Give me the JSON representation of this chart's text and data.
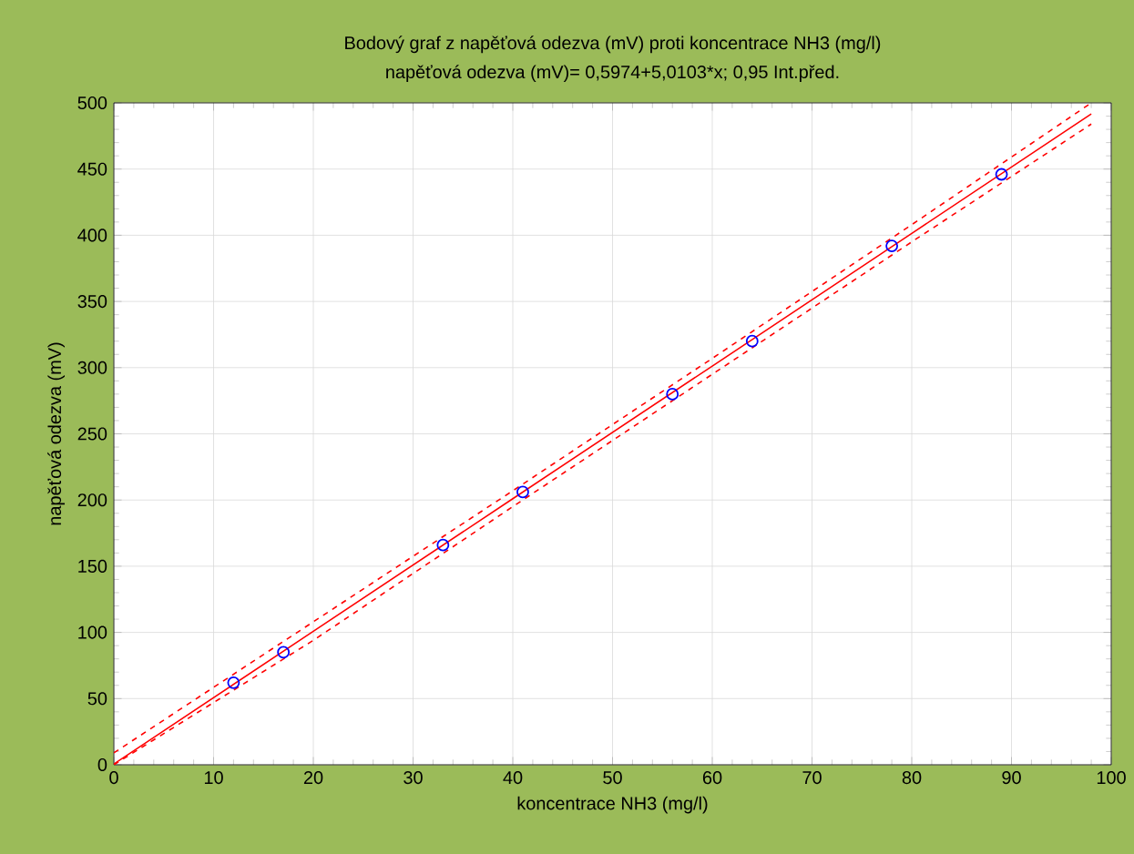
{
  "chart_data": {
    "type": "scatter",
    "title": "Bodový graf z napěťová odezva (mV) proti koncentrace NH3 (mg/l)",
    "subtitle": "napěťová odezva (mV)= 0,5974+5,0103*x; 0,95 Int.před.",
    "xlabel": "koncentrace NH3 (mg/l)",
    "ylabel": "napěťová odezva (mV)",
    "x": [
      12,
      17,
      33,
      41,
      56,
      64,
      78,
      89
    ],
    "series": [
      {
        "color": "#0000ff",
        "marker": "circle",
        "values": [
          62,
          85,
          166,
          206,
          280,
          320,
          392,
          446
        ]
      },
      {
        "type": "line",
        "color": "#ff0000",
        "line_style": "solid",
        "marker": "none",
        "x": [
          0,
          20,
          40,
          60,
          80,
          98
        ],
        "values": [
          0.6,
          100.8,
          201,
          301.2,
          401.4,
          491.6
        ]
      },
      {
        "type": "line",
        "color": "#ff0000",
        "line_style": "dashed",
        "marker": "none",
        "x": [
          0,
          20,
          40,
          60,
          80,
          98
        ],
        "values": [
          0,
          94,
          195,
          295,
          395,
          484
        ]
      },
      {
        "type": "line",
        "color": "#ff0000",
        "line_style": "dashed",
        "marker": "none",
        "x": [
          0,
          20,
          40,
          60,
          80,
          98
        ],
        "values": [
          9,
          108,
          207,
          307,
          408,
          500
        ]
      }
    ],
    "xlim": [
      0,
      100
    ],
    "ylim": [
      0,
      500
    ],
    "xticks": [
      0,
      10,
      20,
      30,
      40,
      50,
      60,
      70,
      80,
      90,
      100
    ],
    "yticks": [
      0,
      50,
      100,
      150,
      200,
      250,
      300,
      350,
      400,
      450,
      500
    ],
    "grid": true
  }
}
